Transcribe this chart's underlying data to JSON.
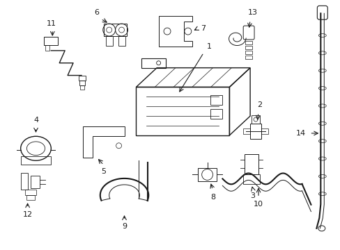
{
  "background_color": "#ffffff",
  "line_color": "#1a1a1a",
  "fig_width": 4.89,
  "fig_height": 3.6,
  "dpi": 100,
  "lw": 1.0,
  "tlw": 0.7
}
